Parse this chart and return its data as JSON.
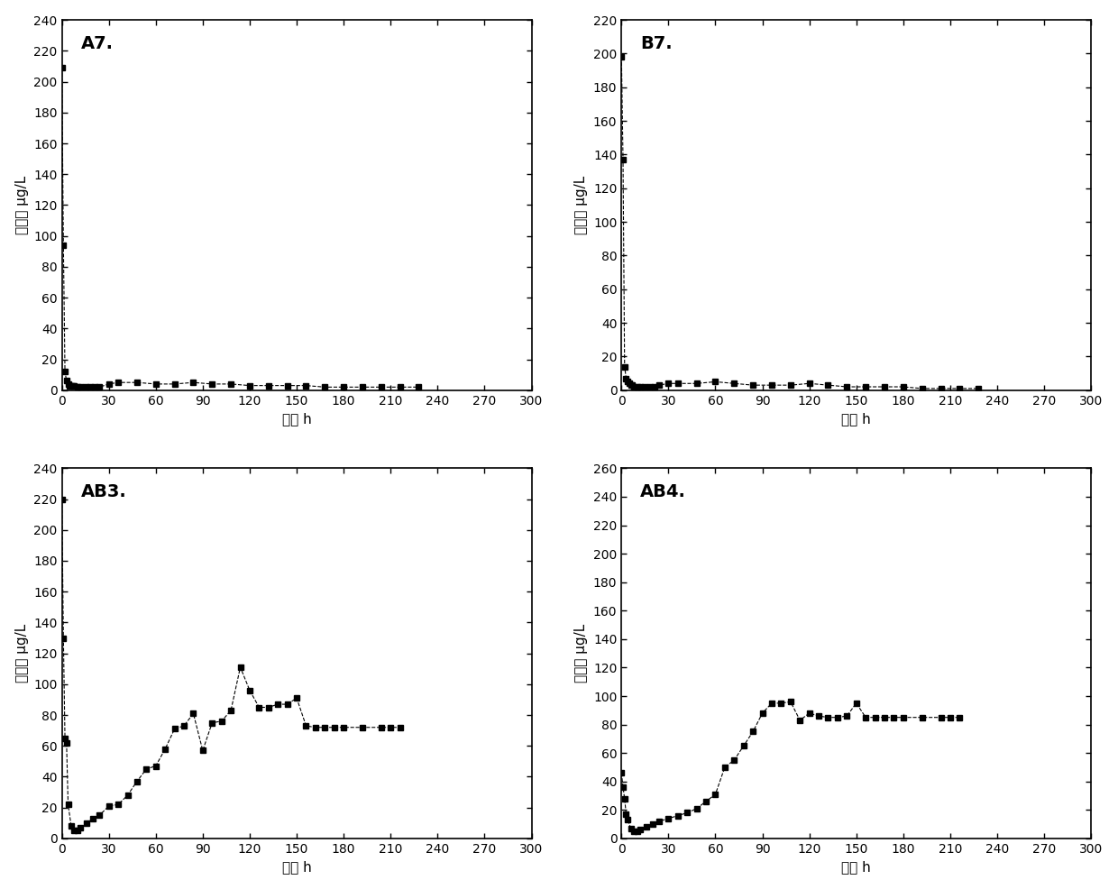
{
  "panels": [
    {
      "label": "A7.",
      "ylabel": "镛浓度 μg/L",
      "xlabel": "时间 h",
      "ylim": [
        0,
        240
      ],
      "yticks": [
        0,
        20,
        40,
        60,
        80,
        100,
        120,
        140,
        160,
        180,
        200,
        220,
        240
      ],
      "xlim": [
        0,
        300
      ],
      "xticks": [
        0,
        30,
        60,
        90,
        120,
        150,
        180,
        210,
        240,
        270,
        300
      ],
      "x": [
        0,
        1,
        2,
        3,
        4,
        5,
        6,
        7,
        8,
        10,
        12,
        15,
        18,
        21,
        24,
        30,
        36,
        48,
        60,
        72,
        84,
        96,
        108,
        120,
        132,
        144,
        156,
        168,
        180,
        192,
        204,
        216,
        228
      ],
      "y": [
        209,
        94,
        12,
        6,
        4,
        3,
        3,
        3,
        3,
        2,
        2,
        2,
        2,
        2,
        2,
        4,
        5,
        5,
        4,
        4,
        5,
        4,
        4,
        3,
        3,
        3,
        3,
        2,
        2,
        2,
        2,
        2,
        2
      ]
    },
    {
      "label": "B7.",
      "ylabel": "镛浓度 μg/L",
      "xlabel": "时间 h",
      "ylim": [
        0,
        220
      ],
      "yticks": [
        0,
        20,
        40,
        60,
        80,
        100,
        120,
        140,
        160,
        180,
        200,
        220
      ],
      "xlim": [
        0,
        300
      ],
      "xticks": [
        0,
        30,
        60,
        90,
        120,
        150,
        180,
        210,
        240,
        270,
        300
      ],
      "x": [
        0,
        1,
        2,
        3,
        4,
        5,
        6,
        7,
        8,
        10,
        12,
        15,
        18,
        21,
        24,
        30,
        36,
        48,
        60,
        72,
        84,
        96,
        108,
        120,
        132,
        144,
        156,
        168,
        180,
        192,
        204,
        216,
        228
      ],
      "y": [
        198,
        137,
        14,
        7,
        5,
        4,
        3,
        3,
        2,
        2,
        2,
        2,
        2,
        2,
        3,
        4,
        4,
        4,
        5,
        4,
        3,
        3,
        3,
        4,
        3,
        2,
        2,
        2,
        2,
        1,
        1,
        1,
        1
      ]
    },
    {
      "label": "AB3.",
      "ylabel": "镛浓度 μg/L",
      "xlabel": "时间 h",
      "ylim": [
        0,
        240
      ],
      "yticks": [
        0,
        20,
        40,
        60,
        80,
        100,
        120,
        140,
        160,
        180,
        200,
        220,
        240
      ],
      "xlim": [
        0,
        300
      ],
      "xticks": [
        0,
        30,
        60,
        90,
        120,
        150,
        180,
        210,
        240,
        270,
        300
      ],
      "x": [
        0,
        1,
        2,
        3,
        4,
        6,
        8,
        10,
        12,
        16,
        20,
        24,
        30,
        36,
        42,
        48,
        54,
        60,
        66,
        72,
        78,
        84,
        90,
        96,
        102,
        108,
        114,
        120,
        126,
        132,
        138,
        144,
        150,
        156,
        162,
        168,
        174,
        180,
        192,
        204,
        210,
        216
      ],
      "y": [
        220,
        130,
        65,
        62,
        22,
        8,
        5,
        5,
        7,
        10,
        13,
        15,
        21,
        22,
        28,
        37,
        45,
        47,
        58,
        71,
        73,
        81,
        57,
        75,
        76,
        83,
        111,
        96,
        85,
        85,
        87,
        87,
        91,
        73,
        72,
        72,
        72,
        72,
        72,
        72,
        72,
        72
      ]
    },
    {
      "label": "AB4.",
      "ylabel": "镛浓度 μg/L",
      "xlabel": "时间 h",
      "ylim": [
        0,
        260
      ],
      "yticks": [
        0,
        20,
        40,
        60,
        80,
        100,
        120,
        140,
        160,
        180,
        200,
        220,
        240,
        260
      ],
      "xlim": [
        0,
        300
      ],
      "xticks": [
        0,
        30,
        60,
        90,
        120,
        150,
        180,
        210,
        240,
        270,
        300
      ],
      "x": [
        0,
        1,
        2,
        3,
        4,
        6,
        8,
        10,
        12,
        16,
        20,
        24,
        30,
        36,
        42,
        48,
        54,
        60,
        66,
        72,
        78,
        84,
        90,
        96,
        102,
        108,
        114,
        120,
        126,
        132,
        138,
        144,
        150,
        156,
        162,
        168,
        174,
        180,
        192,
        204,
        210,
        216
      ],
      "y": [
        46,
        36,
        28,
        17,
        13,
        7,
        5,
        5,
        6,
        8,
        10,
        12,
        14,
        16,
        18,
        21,
        26,
        31,
        50,
        55,
        65,
        75,
        88,
        95,
        95,
        96,
        83,
        88,
        86,
        85,
        85,
        86,
        95,
        85,
        85,
        85,
        85,
        85,
        85,
        85,
        85,
        85
      ]
    }
  ]
}
